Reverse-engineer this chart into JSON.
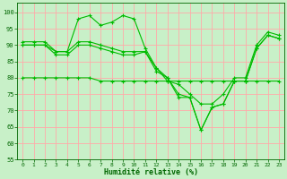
{
  "title": "",
  "xlabel": "Humidité relative (%)",
  "ylabel": "",
  "background_color": "#c8f0c8",
  "grid_color": "#ffaaaa",
  "line_color": "#00bb00",
  "ylim": [
    55,
    103
  ],
  "xlim": [
    -0.5,
    23.5
  ],
  "yticks": [
    55,
    60,
    65,
    70,
    75,
    80,
    85,
    90,
    95,
    100
  ],
  "xticks": [
    0,
    1,
    2,
    3,
    4,
    5,
    6,
    7,
    8,
    9,
    10,
    11,
    12,
    13,
    14,
    15,
    16,
    17,
    18,
    19,
    20,
    21,
    22,
    23
  ],
  "series": [
    {
      "x": [
        0,
        1,
        2,
        3,
        4,
        5,
        6,
        7,
        8,
        9,
        10,
        11,
        12,
        13,
        14,
        15,
        16,
        17,
        18,
        19,
        20,
        21,
        22,
        23
      ],
      "y": [
        91,
        91,
        91,
        88,
        88,
        98,
        99,
        96,
        97,
        99,
        98,
        89,
        83,
        79,
        78,
        75,
        72,
        72,
        75,
        80,
        80,
        90,
        94,
        93
      ]
    },
    {
      "x": [
        0,
        1,
        2,
        3,
        4,
        5,
        6,
        7,
        8,
        9,
        10,
        11,
        12,
        13,
        14,
        15,
        16,
        17,
        18,
        19,
        20,
        21,
        22,
        23
      ],
      "y": [
        90,
        90,
        90,
        88,
        88,
        91,
        91,
        90,
        89,
        88,
        88,
        88,
        83,
        80,
        75,
        74,
        64,
        71,
        72,
        79,
        79,
        89,
        93,
        92
      ]
    },
    {
      "x": [
        0,
        1,
        2,
        3,
        4,
        5,
        6,
        7,
        8,
        9,
        10,
        11,
        12,
        13,
        14,
        15,
        16,
        17,
        18,
        19,
        20,
        21,
        22,
        23
      ],
      "y": [
        90,
        90,
        90,
        87,
        87,
        90,
        90,
        89,
        88,
        87,
        87,
        88,
        82,
        80,
        74,
        74,
        64,
        71,
        72,
        79,
        79,
        89,
        93,
        92
      ]
    },
    {
      "x": [
        0,
        1,
        2,
        3,
        4,
        5,
        6,
        7,
        8,
        9,
        10,
        11,
        12,
        13,
        14,
        15,
        16,
        17,
        18,
        19,
        20,
        21,
        22,
        23
      ],
      "y": [
        80,
        80,
        80,
        80,
        80,
        80,
        80,
        79,
        79,
        79,
        79,
        79,
        79,
        79,
        79,
        79,
        79,
        79,
        79,
        79,
        79,
        79,
        79,
        79
      ]
    }
  ]
}
